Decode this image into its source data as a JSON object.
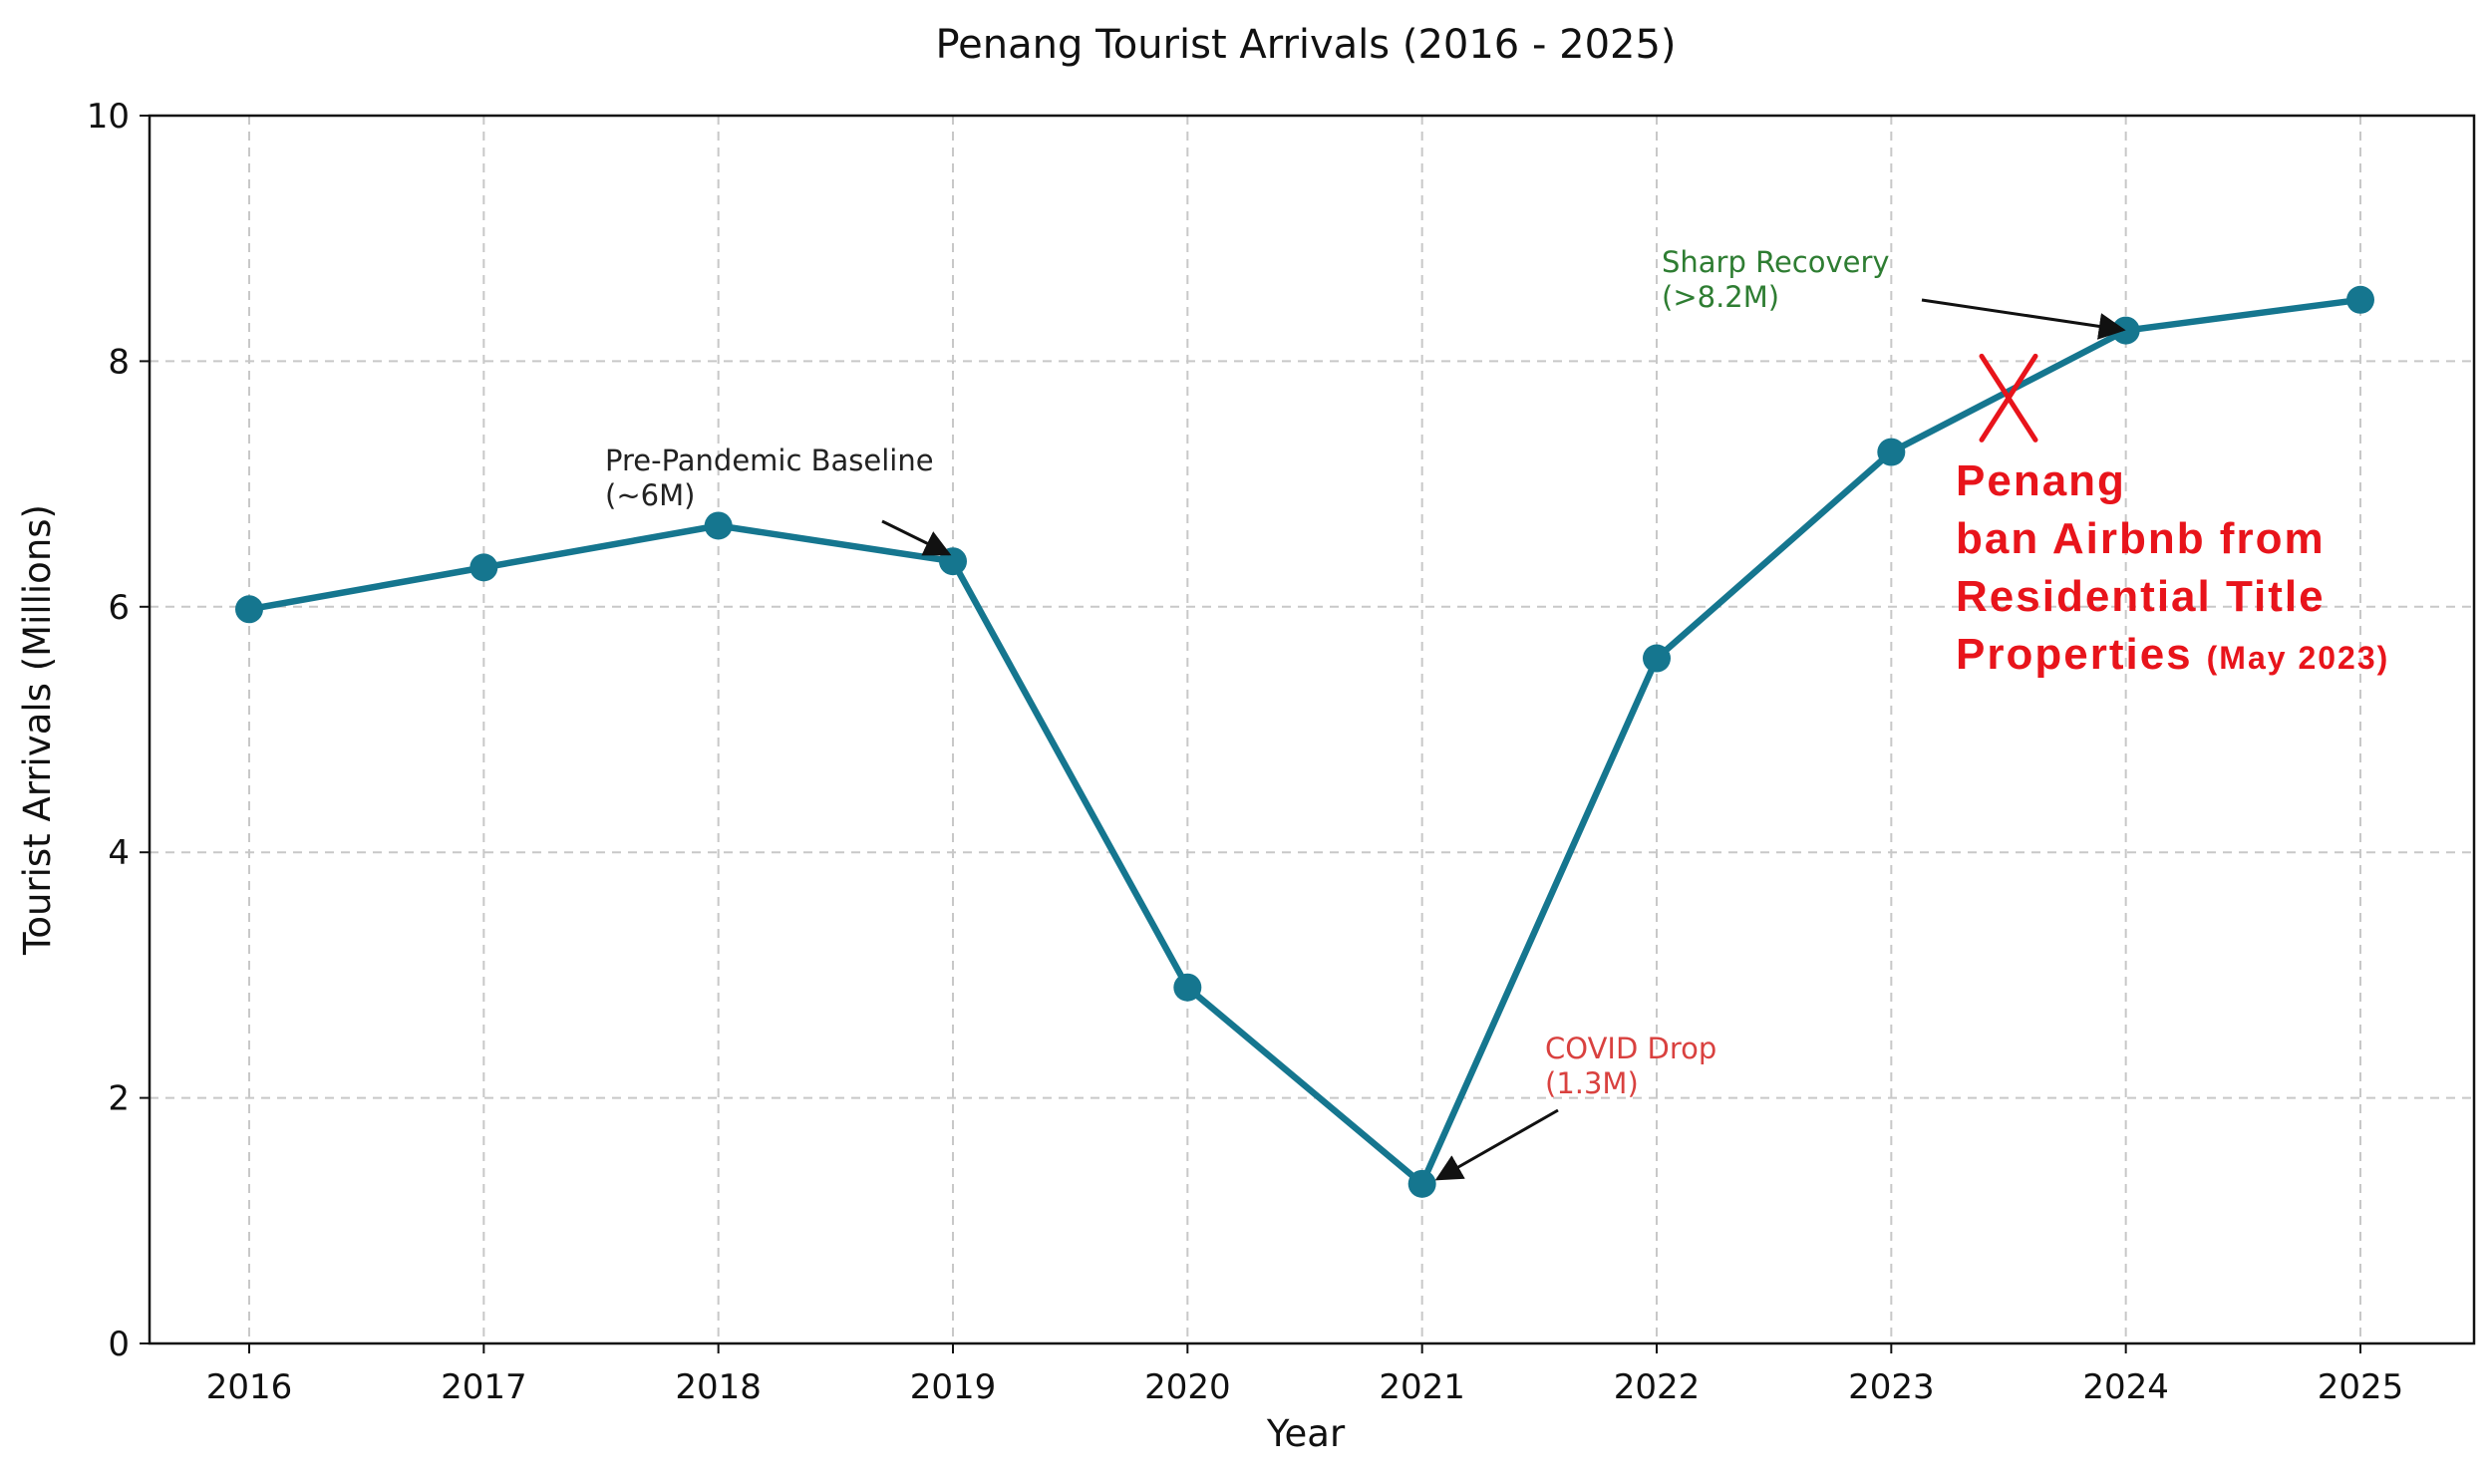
{
  "chart_data": {
    "type": "line",
    "title": "Penang Tourist Arrivals (2016 - 2025)",
    "xlabel": "Year",
    "ylabel": "Tourist Arrivals (Millions)",
    "x": [
      2016,
      2017,
      2018,
      2019,
      2020,
      2021,
      2022,
      2023,
      2024,
      2025
    ],
    "series": [
      {
        "values": [
          5.98,
          6.32,
          6.66,
          6.37,
          2.9,
          1.3,
          5.58,
          7.26,
          8.25,
          8.5
        ]
      }
    ],
    "ylim": [
      0,
      10
    ],
    "yticks": [
      0,
      2,
      4,
      6,
      8,
      10
    ],
    "grid": true,
    "colors": {
      "line": "#15768f",
      "ban_text": "#e8141b",
      "cross": "#e8141b"
    },
    "annotations": [
      {
        "lines": [
          "Pre-Pandemic Baseline",
          "(~6M)"
        ],
        "point": {
          "x": 2019,
          "y": 6.37
        },
        "color": "#222222"
      },
      {
        "lines": [
          "COVID Drop",
          "(1.3M)"
        ],
        "point": {
          "x": 2021,
          "y": 1.3
        },
        "color": "#d9413f"
      },
      {
        "lines": [
          "Sharp Recovery",
          "(>8.2M)"
        ],
        "point": {
          "x": 2024,
          "y": 8.25
        },
        "color": "#2e7d32"
      }
    ],
    "ban_note": {
      "lines": [
        "Penang",
        "ban Airbnb from",
        "Residential Title",
        "Properties"
      ],
      "date": "(May 2023)",
      "marker": {
        "x": 2023.5,
        "y": 7.7
      }
    }
  }
}
